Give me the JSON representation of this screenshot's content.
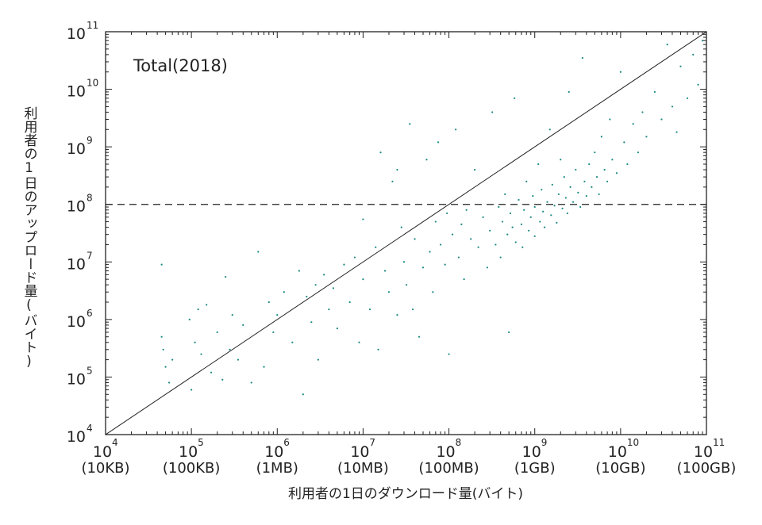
{
  "chart_data": {
    "type": "scatter",
    "annotation": "Total(2018)",
    "xlabel": "利用者の1日のダウンロード量(バイト)",
    "ylabel": "利用者の1日のアップロード量(バイト)",
    "x_scale": "log",
    "y_scale": "log",
    "xlim": [
      10000,
      100000000000
    ],
    "ylim": [
      10000,
      100000000000
    ],
    "x_ticks": [
      {
        "value": 10000,
        "base": "10",
        "exp": "4",
        "unit": "(10KB)"
      },
      {
        "value": 100000,
        "base": "10",
        "exp": "5",
        "unit": "(100KB)"
      },
      {
        "value": 1000000,
        "base": "10",
        "exp": "6",
        "unit": "(1MB)"
      },
      {
        "value": 10000000,
        "base": "10",
        "exp": "7",
        "unit": "(10MB)"
      },
      {
        "value": 100000000,
        "base": "10",
        "exp": "8",
        "unit": "(100MB)"
      },
      {
        "value": 1000000000,
        "base": "10",
        "exp": "9",
        "unit": "(1GB)"
      },
      {
        "value": 10000000000,
        "base": "10",
        "exp": "10",
        "unit": "(10GB)"
      },
      {
        "value": 100000000000,
        "base": "10",
        "exp": "11",
        "unit": "(100GB)"
      }
    ],
    "y_ticks": [
      {
        "value": 10000,
        "base": "10",
        "exp": "4"
      },
      {
        "value": 100000,
        "base": "10",
        "exp": "5"
      },
      {
        "value": 1000000,
        "base": "10",
        "exp": "6"
      },
      {
        "value": 10000000,
        "base": "10",
        "exp": "7"
      },
      {
        "value": 100000000,
        "base": "10",
        "exp": "8"
      },
      {
        "value": 1000000000,
        "base": "10",
        "exp": "9"
      },
      {
        "value": 10000000000,
        "base": "10",
        "exp": "10"
      },
      {
        "value": 100000000000,
        "base": "10",
        "exp": "11"
      }
    ],
    "reference_lines": [
      {
        "kind": "diagonal",
        "equation": "y = x",
        "style": "solid"
      },
      {
        "kind": "horizontal",
        "y": 100000000,
        "style": "dashed"
      }
    ],
    "marker_color": "#1a8a80",
    "series": [
      {
        "points": [
          [
            45000,
            9000000
          ],
          [
            45000,
            500000
          ],
          [
            47000,
            300000
          ],
          [
            50000,
            150000
          ],
          [
            55000,
            80000
          ],
          [
            60000,
            200000
          ],
          [
            95000,
            1000000
          ],
          [
            100000,
            60000
          ],
          [
            110000,
            400000
          ],
          [
            120000,
            1500000
          ],
          [
            130000,
            250000
          ],
          [
            150000,
            1800000
          ],
          [
            170000,
            120000
          ],
          [
            200000,
            600000
          ],
          [
            230000,
            90000
          ],
          [
            250000,
            5500000
          ],
          [
            280000,
            300000
          ],
          [
            300000,
            1200000
          ],
          [
            350000,
            200000
          ],
          [
            400000,
            800000
          ],
          [
            500000,
            80000
          ],
          [
            600000,
            15000000
          ],
          [
            700000,
            150000
          ],
          [
            800000,
            2000000
          ],
          [
            900000,
            600000
          ],
          [
            1000000,
            1200000
          ],
          [
            1200000,
            3000000
          ],
          [
            1500000,
            400000
          ],
          [
            1800000,
            7000000
          ],
          [
            2000000,
            50000
          ],
          [
            2200000,
            2500000
          ],
          [
            2500000,
            900000
          ],
          [
            2800000,
            4000000
          ],
          [
            3000000,
            200000
          ],
          [
            3500000,
            6000000
          ],
          [
            4000000,
            1500000
          ],
          [
            4500000,
            3500000
          ],
          [
            5000000,
            700000
          ],
          [
            6000000,
            9000000
          ],
          [
            7000000,
            2000000
          ],
          [
            8000000,
            12000000
          ],
          [
            9000000,
            400000
          ],
          [
            10000000,
            55000000
          ],
          [
            10000000,
            5000000
          ],
          [
            12000000,
            1500000
          ],
          [
            14000000,
            18000000
          ],
          [
            15000000,
            300000
          ],
          [
            16000000,
            800000000
          ],
          [
            18000000,
            7000000
          ],
          [
            20000000,
            3000000
          ],
          [
            22000000,
            250000000
          ],
          [
            25000000,
            1200000
          ],
          [
            25000000,
            400000000
          ],
          [
            28000000,
            40000000
          ],
          [
            30000000,
            10000000
          ],
          [
            32000000,
            4000000
          ],
          [
            35000000,
            2500000000
          ],
          [
            38000000,
            1500000
          ],
          [
            40000000,
            25000000
          ],
          [
            45000000,
            500000
          ],
          [
            50000000,
            8000000
          ],
          [
            55000000,
            600000000
          ],
          [
            60000000,
            15000000
          ],
          [
            65000000,
            3000000
          ],
          [
            70000000,
            50000000
          ],
          [
            75000000,
            1200000000
          ],
          [
            80000000,
            20000000
          ],
          [
            90000000,
            9000000
          ],
          [
            95000000,
            70000000
          ],
          [
            100000000,
            250000
          ],
          [
            110000000,
            30000000
          ],
          [
            120000000,
            2000000000
          ],
          [
            130000000,
            12000000
          ],
          [
            140000000,
            45000000
          ],
          [
            150000000,
            5000000
          ],
          [
            160000000,
            80000000
          ],
          [
            180000000,
            25000000
          ],
          [
            200000000,
            400000000
          ],
          [
            220000000,
            18000000
          ],
          [
            250000000,
            60000000
          ],
          [
            280000000,
            8000000
          ],
          [
            300000000,
            35000000
          ],
          [
            320000000,
            4000000000
          ],
          [
            350000000,
            20000000
          ],
          [
            380000000,
            90000000
          ],
          [
            400000000,
            12000000
          ],
          [
            420000000,
            50000000
          ],
          [
            450000000,
            150000000
          ],
          [
            480000000,
            30000000
          ],
          [
            500000000,
            600000
          ],
          [
            520000000,
            70000000
          ],
          [
            550000000,
            40000000
          ],
          [
            580000000,
            7000000000
          ],
          [
            600000000,
            22000000
          ],
          [
            650000000,
            120000000
          ],
          [
            700000000,
            45000000
          ],
          [
            720000000,
            18000000
          ],
          [
            750000000,
            80000000
          ],
          [
            800000000,
            250000000
          ],
          [
            850000000,
            35000000
          ],
          [
            900000000,
            60000000
          ],
          [
            950000000,
            140000000
          ],
          [
            1000000000,
            28000000
          ],
          [
            1000000000,
            90000000
          ],
          [
            1100000000,
            500000000
          ],
          [
            1150000000,
            50000000
          ],
          [
            1200000000,
            180000000
          ],
          [
            1250000000,
            75000000
          ],
          [
            1300000000,
            40000000
          ],
          [
            1400000000,
            110000000
          ],
          [
            1500000000,
            2000000000
          ],
          [
            1550000000,
            65000000
          ],
          [
            1600000000,
            220000000
          ],
          [
            1700000000,
            95000000
          ],
          [
            1800000000,
            48000000
          ],
          [
            1900000000,
            150000000
          ],
          [
            2000000000,
            600000000
          ],
          [
            2100000000,
            85000000
          ],
          [
            2200000000,
            300000000
          ],
          [
            2300000000,
            130000000
          ],
          [
            2400000000,
            70000000
          ],
          [
            2500000000,
            9000000000
          ],
          [
            2600000000,
            200000000
          ],
          [
            2800000000,
            110000000
          ],
          [
            3000000000,
            400000000
          ],
          [
            3200000000,
            160000000
          ],
          [
            3400000000,
            90000000
          ],
          [
            3600000000,
            35000000000
          ],
          [
            3800000000,
            250000000
          ],
          [
            4000000000,
            140000000
          ],
          [
            4300000000,
            500000000
          ],
          [
            4600000000,
            200000000
          ],
          [
            5000000000,
            800000000
          ],
          [
            5300000000,
            300000000
          ],
          [
            5600000000,
            150000000
          ],
          [
            6000000000,
            1500000000
          ],
          [
            6500000000,
            400000000
          ],
          [
            7000000000,
            250000000
          ],
          [
            7500000000,
            3000000000
          ],
          [
            8000000000,
            600000000
          ],
          [
            9000000000,
            350000000
          ],
          [
            10000000000,
            20000000000
          ],
          [
            11000000000,
            1200000000
          ],
          [
            12000000000,
            500000000
          ],
          [
            14000000000,
            2500000000
          ],
          [
            16000000000,
            800000000
          ],
          [
            18000000000,
            4000000000
          ],
          [
            20000000000,
            1500000000
          ],
          [
            25000000000,
            9000000000
          ],
          [
            30000000000,
            3000000000
          ],
          [
            35000000000,
            60000000000
          ],
          [
            40000000000,
            5000000000
          ],
          [
            45000000000,
            1800000000
          ],
          [
            50000000000,
            25000000000
          ],
          [
            60000000000,
            7000000000
          ],
          [
            70000000000,
            40000000000
          ],
          [
            80000000000,
            12000000000
          ],
          [
            90000000000,
            70000000000
          ]
        ]
      }
    ]
  }
}
